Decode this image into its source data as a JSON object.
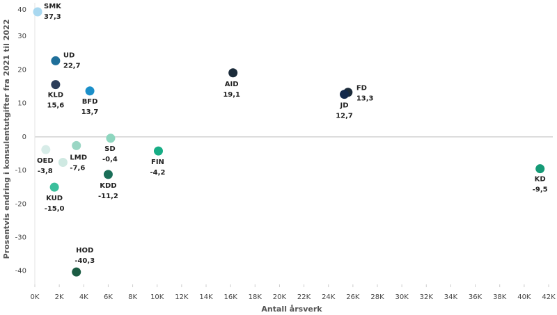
{
  "chart_data": {
    "type": "scatter",
    "x_label": "Antall årsverk",
    "y_label": "Prosentvis endring i konsulentutgifter fra 2021 til 2022",
    "labels": [
      "SMK",
      "UD",
      "KLD",
      "BFD",
      "AID",
      "FD",
      "JD",
      "OED",
      "LMD",
      null,
      "SD",
      "FIN",
      "KDD",
      "KUD",
      "HOD",
      "KD"
    ],
    "x": [
      230,
      1700,
      1700,
      4500,
      16200,
      25600,
      25300,
      900,
      2300,
      3400,
      6200,
      10100,
      6000,
      1600,
      3400,
      41300
    ],
    "values": [
      37.3,
      22.7,
      15.6,
      13.7,
      19.1,
      13.3,
      12.7,
      -3.8,
      -7.6,
      -2.6,
      -0.4,
      -4.2,
      -11.2,
      -15.0,
      -40.3,
      -9.5
    ],
    "value_labels": [
      "37,3",
      "22,7",
      "15,6",
      "13,7",
      "19,1",
      "13,3",
      "12,7",
      "-3,8",
      "-7,6",
      null,
      "-0,4",
      "-4,2",
      "-11,2",
      "-15,0",
      "-40,3",
      "-9,5"
    ],
    "colors": [
      "#a9d8f0",
      "#1f6f9a",
      "#2c3e5a",
      "#1b8fc9",
      "#1b2b3a",
      "#1b2b3a",
      "#13294b",
      "#d7ece8",
      "#cfe9e2",
      "#9ad6c4",
      "#8ed6bf",
      "#17ad85",
      "#1a6e58",
      "#3bbf9c",
      "#1b5c43",
      "#159a76"
    ],
    "xlim": [
      0,
      42000
    ],
    "xticks": [
      {
        "value": 0,
        "label": "0K"
      },
      {
        "value": 2000,
        "label": "2K"
      },
      {
        "value": 4000,
        "label": "4K"
      },
      {
        "value": 6000,
        "label": "6K"
      },
      {
        "value": 8000,
        "label": "8K"
      },
      {
        "value": 10000,
        "label": "10K"
      },
      {
        "value": 12000,
        "label": "12K"
      },
      {
        "value": 14000,
        "label": "14K"
      },
      {
        "value": 16000,
        "label": "16K"
      },
      {
        "value": 18000,
        "label": "18K"
      },
      {
        "value": 20000,
        "label": "20K"
      },
      {
        "value": 22000,
        "label": "22K"
      },
      {
        "value": 24000,
        "label": "24K"
      },
      {
        "value": 26000,
        "label": "26K"
      },
      {
        "value": 28000,
        "label": "28K"
      },
      {
        "value": 30000,
        "label": "30K"
      },
      {
        "value": 32000,
        "label": "32K"
      },
      {
        "value": 34000,
        "label": "34K"
      },
      {
        "value": 36000,
        "label": "36K"
      },
      {
        "value": 38000,
        "label": "38K"
      },
      {
        "value": 40000,
        "label": "40K"
      },
      {
        "value": 42000,
        "label": "42K"
      }
    ],
    "ylim": [
      -44,
      40
    ],
    "yticks": [
      40,
      30,
      20,
      10,
      0,
      -10,
      -20,
      -30,
      -40
    ]
  }
}
